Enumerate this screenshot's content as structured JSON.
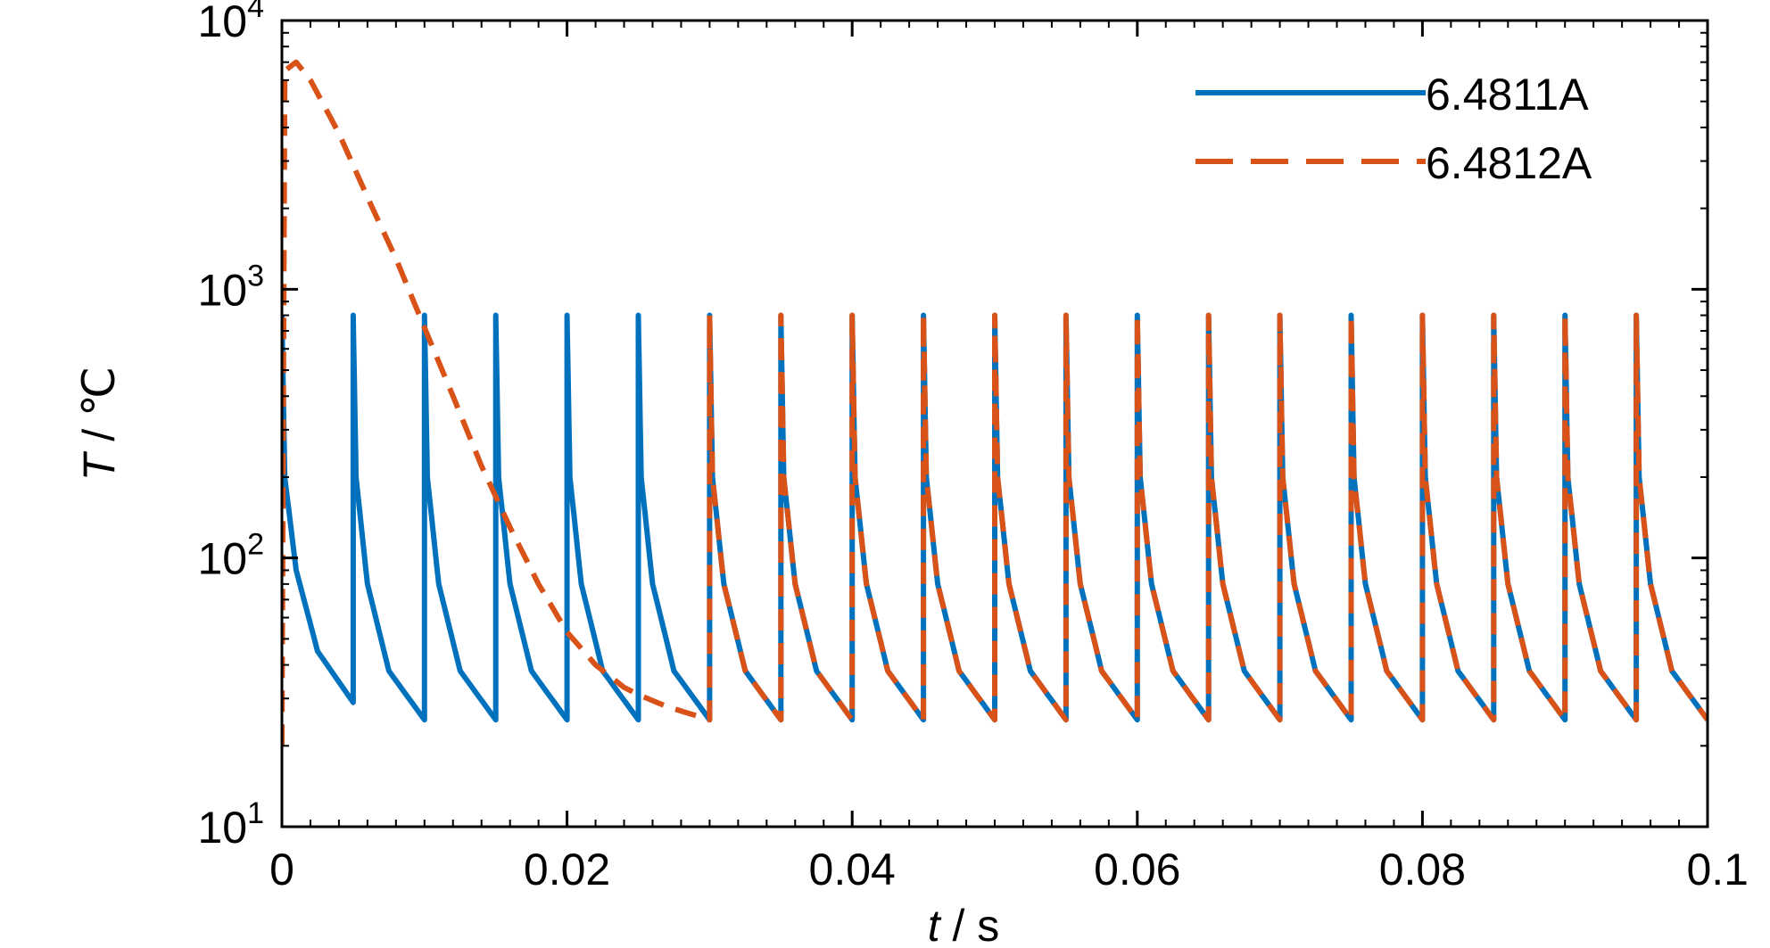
{
  "chart_data": {
    "type": "line",
    "yscale": "log",
    "xlabel_var": "t",
    "xlabel_unit": " / s",
    "ylabel_var": "T",
    "ylabel_unit": " / ℃",
    "xlim": [
      0,
      0.1
    ],
    "ylim": [
      10,
      10000
    ],
    "x_ticks": [
      {
        "value": 0,
        "label": "0"
      },
      {
        "value": 0.02,
        "label": "0.02"
      },
      {
        "value": 0.04,
        "label": "0.04"
      },
      {
        "value": 0.06,
        "label": "0.06"
      },
      {
        "value": 0.08,
        "label": "0.08"
      },
      {
        "value": 0.1,
        "label": "0.1"
      }
    ],
    "y_ticks": [
      {
        "value": 10,
        "base": "10",
        "exp": "1"
      },
      {
        "value": 100,
        "base": "10",
        "exp": "2"
      },
      {
        "value": 1000,
        "base": "10",
        "exp": "3"
      },
      {
        "value": 10000,
        "base": "10",
        "exp": "4"
      }
    ],
    "grid": false,
    "legend_position": "top-right",
    "pulse_period": 0.005,
    "series": [
      {
        "name": "6.4811A",
        "color": "#0072BD",
        "style": "solid",
        "points": [
          [
            0,
            800
          ],
          [
            0.0002,
            200
          ],
          [
            0.001,
            90
          ],
          [
            0.0025,
            45
          ],
          [
            0.005,
            29
          ],
          [
            0.005,
            800
          ],
          [
            0.0052,
            200
          ],
          [
            0.006,
            80
          ],
          [
            0.0075,
            38
          ],
          [
            0.01,
            25
          ],
          [
            0.01,
            800
          ],
          [
            0.0102,
            200
          ],
          [
            0.011,
            80
          ],
          [
            0.0125,
            38
          ],
          [
            0.015,
            25
          ],
          [
            0.015,
            800
          ],
          [
            0.0152,
            200
          ],
          [
            0.016,
            80
          ],
          [
            0.0175,
            38
          ],
          [
            0.02,
            25
          ],
          [
            0.02,
            800
          ],
          [
            0.0202,
            200
          ],
          [
            0.021,
            80
          ],
          [
            0.0225,
            38
          ],
          [
            0.025,
            25
          ],
          [
            0.025,
            800
          ],
          [
            0.0252,
            200
          ],
          [
            0.026,
            80
          ],
          [
            0.0275,
            38
          ],
          [
            0.03,
            25
          ],
          [
            0.03,
            800
          ],
          [
            0.0302,
            200
          ],
          [
            0.031,
            80
          ],
          [
            0.0325,
            38
          ],
          [
            0.035,
            25
          ],
          [
            0.035,
            800
          ],
          [
            0.0352,
            200
          ],
          [
            0.036,
            80
          ],
          [
            0.0375,
            38
          ],
          [
            0.04,
            25
          ],
          [
            0.04,
            800
          ],
          [
            0.0402,
            200
          ],
          [
            0.041,
            80
          ],
          [
            0.0425,
            38
          ],
          [
            0.045,
            25
          ],
          [
            0.045,
            800
          ],
          [
            0.0452,
            200
          ],
          [
            0.046,
            80
          ],
          [
            0.0475,
            38
          ],
          [
            0.05,
            25
          ],
          [
            0.05,
            800
          ],
          [
            0.0502,
            200
          ],
          [
            0.051,
            80
          ],
          [
            0.0525,
            38
          ],
          [
            0.055,
            25
          ],
          [
            0.055,
            800
          ],
          [
            0.0552,
            200
          ],
          [
            0.056,
            80
          ],
          [
            0.0575,
            38
          ],
          [
            0.06,
            25
          ],
          [
            0.06,
            800
          ],
          [
            0.0602,
            200
          ],
          [
            0.061,
            80
          ],
          [
            0.0625,
            38
          ],
          [
            0.065,
            25
          ],
          [
            0.065,
            800
          ],
          [
            0.0652,
            200
          ],
          [
            0.066,
            80
          ],
          [
            0.0675,
            38
          ],
          [
            0.07,
            25
          ],
          [
            0.07,
            800
          ],
          [
            0.0702,
            200
          ],
          [
            0.071,
            80
          ],
          [
            0.0725,
            38
          ],
          [
            0.075,
            25
          ],
          [
            0.075,
            800
          ],
          [
            0.0752,
            200
          ],
          [
            0.076,
            80
          ],
          [
            0.0775,
            38
          ],
          [
            0.08,
            25
          ],
          [
            0.08,
            800
          ],
          [
            0.0802,
            200
          ],
          [
            0.081,
            80
          ],
          [
            0.0825,
            38
          ],
          [
            0.085,
            25
          ],
          [
            0.085,
            800
          ],
          [
            0.0852,
            200
          ],
          [
            0.086,
            80
          ],
          [
            0.0875,
            38
          ],
          [
            0.09,
            25
          ],
          [
            0.09,
            800
          ],
          [
            0.0902,
            200
          ],
          [
            0.091,
            80
          ],
          [
            0.0925,
            38
          ],
          [
            0.095,
            25
          ],
          [
            0.095,
            800
          ],
          [
            0.0952,
            200
          ],
          [
            0.096,
            80
          ],
          [
            0.0975,
            38
          ],
          [
            0.1,
            25
          ]
        ]
      },
      {
        "name": "6.4812A",
        "color": "#D95319",
        "style": "dashed",
        "points": [
          [
            0,
            20
          ],
          [
            0.0002,
            6500
          ],
          [
            0.001,
            7000
          ],
          [
            0.002,
            6000
          ],
          [
            0.004,
            3800
          ],
          [
            0.006,
            2200
          ],
          [
            0.008,
            1300
          ],
          [
            0.01,
            720
          ],
          [
            0.012,
            400
          ],
          [
            0.014,
            220
          ],
          [
            0.016,
            130
          ],
          [
            0.018,
            80
          ],
          [
            0.02,
            53
          ],
          [
            0.022,
            40
          ],
          [
            0.024,
            33
          ],
          [
            0.025,
            31
          ],
          [
            0.027,
            28
          ],
          [
            0.03,
            25
          ],
          [
            0.03,
            800
          ],
          [
            0.0302,
            200
          ],
          [
            0.031,
            80
          ],
          [
            0.0325,
            38
          ],
          [
            0.035,
            25
          ],
          [
            0.035,
            800
          ],
          [
            0.0352,
            200
          ],
          [
            0.036,
            80
          ],
          [
            0.0375,
            38
          ],
          [
            0.04,
            25
          ],
          [
            0.04,
            800
          ],
          [
            0.0402,
            200
          ],
          [
            0.041,
            80
          ],
          [
            0.0425,
            38
          ],
          [
            0.045,
            25
          ],
          [
            0.045,
            800
          ],
          [
            0.0452,
            200
          ],
          [
            0.046,
            80
          ],
          [
            0.0475,
            38
          ],
          [
            0.05,
            25
          ],
          [
            0.05,
            800
          ],
          [
            0.0502,
            200
          ],
          [
            0.051,
            80
          ],
          [
            0.0525,
            38
          ],
          [
            0.055,
            25
          ],
          [
            0.055,
            800
          ],
          [
            0.0552,
            200
          ],
          [
            0.056,
            80
          ],
          [
            0.0575,
            38
          ],
          [
            0.06,
            25
          ],
          [
            0.06,
            800
          ],
          [
            0.0602,
            200
          ],
          [
            0.061,
            80
          ],
          [
            0.0625,
            38
          ],
          [
            0.065,
            25
          ],
          [
            0.065,
            800
          ],
          [
            0.0652,
            200
          ],
          [
            0.066,
            80
          ],
          [
            0.0675,
            38
          ],
          [
            0.07,
            25
          ],
          [
            0.07,
            800
          ],
          [
            0.0702,
            200
          ],
          [
            0.071,
            80
          ],
          [
            0.0725,
            38
          ],
          [
            0.075,
            25
          ],
          [
            0.075,
            800
          ],
          [
            0.0752,
            200
          ],
          [
            0.076,
            80
          ],
          [
            0.0775,
            38
          ],
          [
            0.08,
            25
          ],
          [
            0.08,
            800
          ],
          [
            0.0802,
            200
          ],
          [
            0.081,
            80
          ],
          [
            0.0825,
            38
          ],
          [
            0.085,
            25
          ],
          [
            0.085,
            800
          ],
          [
            0.0852,
            200
          ],
          [
            0.086,
            80
          ],
          [
            0.0875,
            38
          ],
          [
            0.09,
            25
          ],
          [
            0.09,
            800
          ],
          [
            0.0902,
            200
          ],
          [
            0.091,
            80
          ],
          [
            0.0925,
            38
          ],
          [
            0.095,
            25
          ],
          [
            0.095,
            800
          ],
          [
            0.0952,
            200
          ],
          [
            0.096,
            80
          ],
          [
            0.0975,
            38
          ],
          [
            0.1,
            25
          ]
        ]
      }
    ]
  }
}
